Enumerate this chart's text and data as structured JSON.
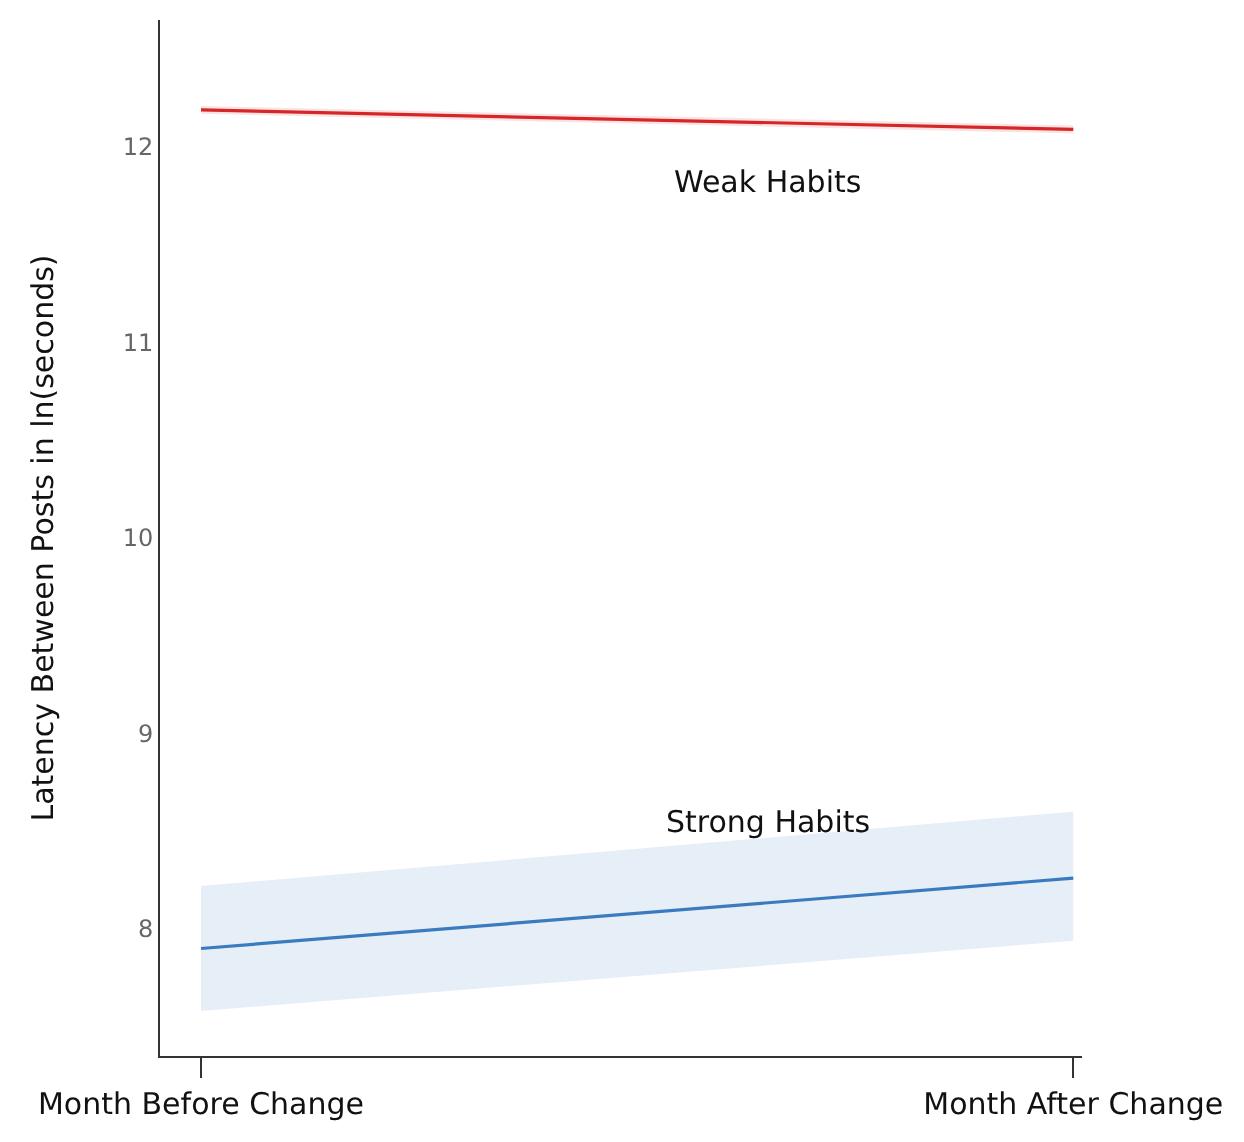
{
  "chart_data": {
    "type": "line",
    "ylabel": "Latency Between Posts in ln(seconds)",
    "categories": [
      "Month Before Change",
      "Month After Change"
    ],
    "series": [
      {
        "name": "Weak Habits",
        "color": "#d62728",
        "values": [
          12.19,
          12.09
        ],
        "lower": [
          12.17,
          12.07
        ],
        "upper": [
          12.21,
          12.11
        ]
      },
      {
        "name": "Strong Habits",
        "color": "#3a7bbf",
        "values": [
          7.9,
          8.26
        ],
        "lower": [
          7.58,
          7.94
        ],
        "upper": [
          8.22,
          8.6
        ]
      }
    ],
    "ylim": [
      7.35,
      12.65
    ],
    "yticks": [
      8,
      9,
      10,
      11,
      12
    ],
    "legend": false,
    "marker": "none",
    "line_style": "solid"
  }
}
